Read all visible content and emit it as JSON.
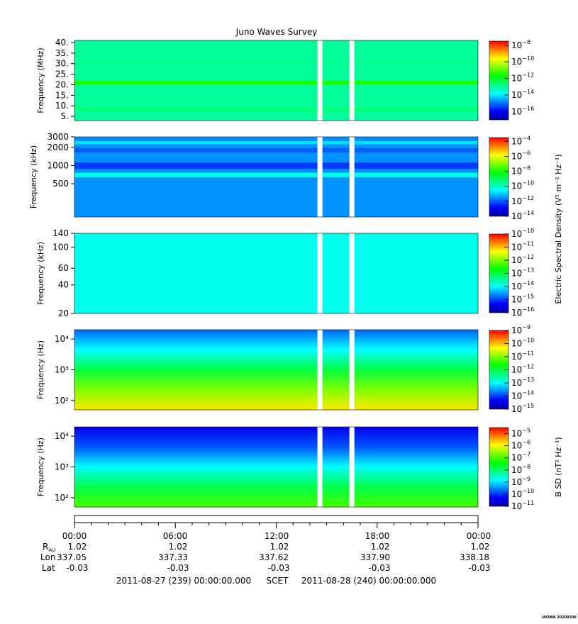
{
  "title": "Juno Waves Survey",
  "scet_label": "SCET",
  "start_label": "2011-08-27 (239) 00:00:00.000",
  "end_label": "2011-08-28 (240) 00:00:00.000",
  "watermark": "UIOWA 20200306",
  "ephemeris": {
    "rows": [
      {
        "label": "R",
        "sub": "AU",
        "values": [
          "1.02",
          "1.02",
          "1.02",
          "1.02",
          "1.02"
        ]
      },
      {
        "label": "Lon",
        "sub": "",
        "values": [
          "337.05",
          "337.33",
          "337.62",
          "337.90",
          "338.18"
        ]
      },
      {
        "label": "Lat",
        "sub": "",
        "values": [
          "-0.03",
          "-0.03",
          "-0.03",
          "-0.03",
          "-0.03"
        ]
      }
    ]
  },
  "colorscale": [
    "#000099",
    "#0000ff",
    "#0080ff",
    "#00ffff",
    "#00ff80",
    "#00ff00",
    "#80ff00",
    "#ffff00",
    "#ff8000",
    "#ff0000"
  ],
  "chart_data": {
    "type": "heatmap",
    "time_ticks": [
      "00:00",
      "06:00",
      "12:00",
      "18:00",
      "00:00"
    ],
    "time_range_hours": [
      0,
      24
    ],
    "data_gaps_hours": [
      [
        14.45,
        14.75
      ],
      [
        16.35,
        16.65
      ]
    ],
    "panels": [
      {
        "id": "hfr-high",
        "ylabel": "Frequency (MHz)",
        "yscale": "linear",
        "ylim": [
          3,
          41
        ],
        "yticks": [
          {
            "v": 5,
            "t": "5."
          },
          {
            "v": 10,
            "t": "10."
          },
          {
            "v": 15,
            "t": "15."
          },
          {
            "v": 20,
            "t": "20."
          },
          {
            "v": 25,
            "t": "25."
          },
          {
            "v": 30,
            "t": "30."
          },
          {
            "v": 35,
            "t": "35."
          },
          {
            "v": 40,
            "t": "40."
          }
        ],
        "cbar_range_exp": [
          -17,
          -7.5
        ],
        "cbar_ticks": [
          -16,
          -14,
          -12,
          -10,
          -8
        ],
        "cbar_label": "",
        "background_level_exp": -13,
        "bands": [
          {
            "f": 21,
            "w": 1.0,
            "level_exp": -11.5
          },
          {
            "f": 8.5,
            "w": 0.5,
            "level_exp": -12.5
          },
          {
            "f": 30.0,
            "w": 0.5,
            "level_exp": -12.8
          }
        ]
      },
      {
        "id": "hfr-low",
        "ylabel": "Frequency (kHz)",
        "yscale": "log",
        "ylim": [
          140,
          3000
        ],
        "yticks": [
          {
            "v": 500,
            "t": "500"
          },
          {
            "v": 1000,
            "t": "1000"
          },
          {
            "v": 2000,
            "t": "2000"
          },
          {
            "v": 3000,
            "t": "3000"
          }
        ],
        "cbar_range_exp": [
          -14,
          -3.5
        ],
        "cbar_ticks": [
          -14,
          -12,
          -10,
          -8,
          -6,
          -4
        ],
        "cbar_label": "",
        "background_level_exp": -11.5,
        "bands": [
          {
            "f": 700,
            "w": 60,
            "level_exp": -10.3
          },
          {
            "f": 1000,
            "w": 120,
            "level_exp": -12.3
          },
          {
            "f": 1800,
            "w": 150,
            "level_exp": -12.0
          },
          {
            "f": 2400,
            "w": 150,
            "level_exp": -10.8
          }
        ]
      },
      {
        "id": "lfr-high",
        "ylabel": "Frequency (kHz)",
        "yscale": "log",
        "ylim": [
          20,
          140
        ],
        "yticks": [
          {
            "v": 20,
            "t": "20"
          },
          {
            "v": 40,
            "t": "40"
          },
          {
            "v": 60,
            "t": "60"
          },
          {
            "v": 100,
            "t": "100"
          },
          {
            "v": 140,
            "t": "140"
          }
        ],
        "cbar_range_exp": [
          -16,
          -10
        ],
        "cbar_ticks": [
          -16,
          -15,
          -14,
          -13,
          -12,
          -11,
          -10
        ],
        "cbar_label": "Electric Spectral Density (V² m⁻² Hz⁻¹)",
        "background_level_exp": -13.9,
        "bands": []
      },
      {
        "id": "lfr-low",
        "ylabel": "Frequency (Hz)",
        "yscale": "log",
        "ylim": [
          50,
          20000
        ],
        "yticks": [
          {
            "v": 100,
            "t": "10²"
          },
          {
            "v": 1000,
            "t": "10³"
          },
          {
            "v": 10000,
            "t": "10⁴"
          }
        ],
        "cbar_range_exp": [
          -15,
          -9
        ],
        "cbar_ticks": [
          -15,
          -14,
          -13,
          -12,
          -11,
          -10,
          -9
        ],
        "cbar_label": "",
        "gradient_levels_exp": [
          -10.2,
          -11.0,
          -12.0,
          -13.0,
          -13.8
        ],
        "bands": []
      },
      {
        "id": "magnetic",
        "ylabel": "Frequency (Hz)",
        "yscale": "log",
        "ylim": [
          50,
          20000
        ],
        "yticks": [
          {
            "v": 100,
            "t": "10²"
          },
          {
            "v": 1000,
            "t": "10³"
          },
          {
            "v": 10000,
            "t": "10⁴"
          }
        ],
        "cbar_range_exp": [
          -11,
          -4.5
        ],
        "cbar_ticks": [
          -11,
          -10,
          -9,
          -8,
          -7,
          -6,
          -5
        ],
        "cbar_label": "B SD (nT² Hz⁻¹)",
        "gradient_levels_exp": [
          -7.0,
          -7.8,
          -8.8,
          -9.8,
          -10.4
        ],
        "bands": []
      }
    ]
  }
}
